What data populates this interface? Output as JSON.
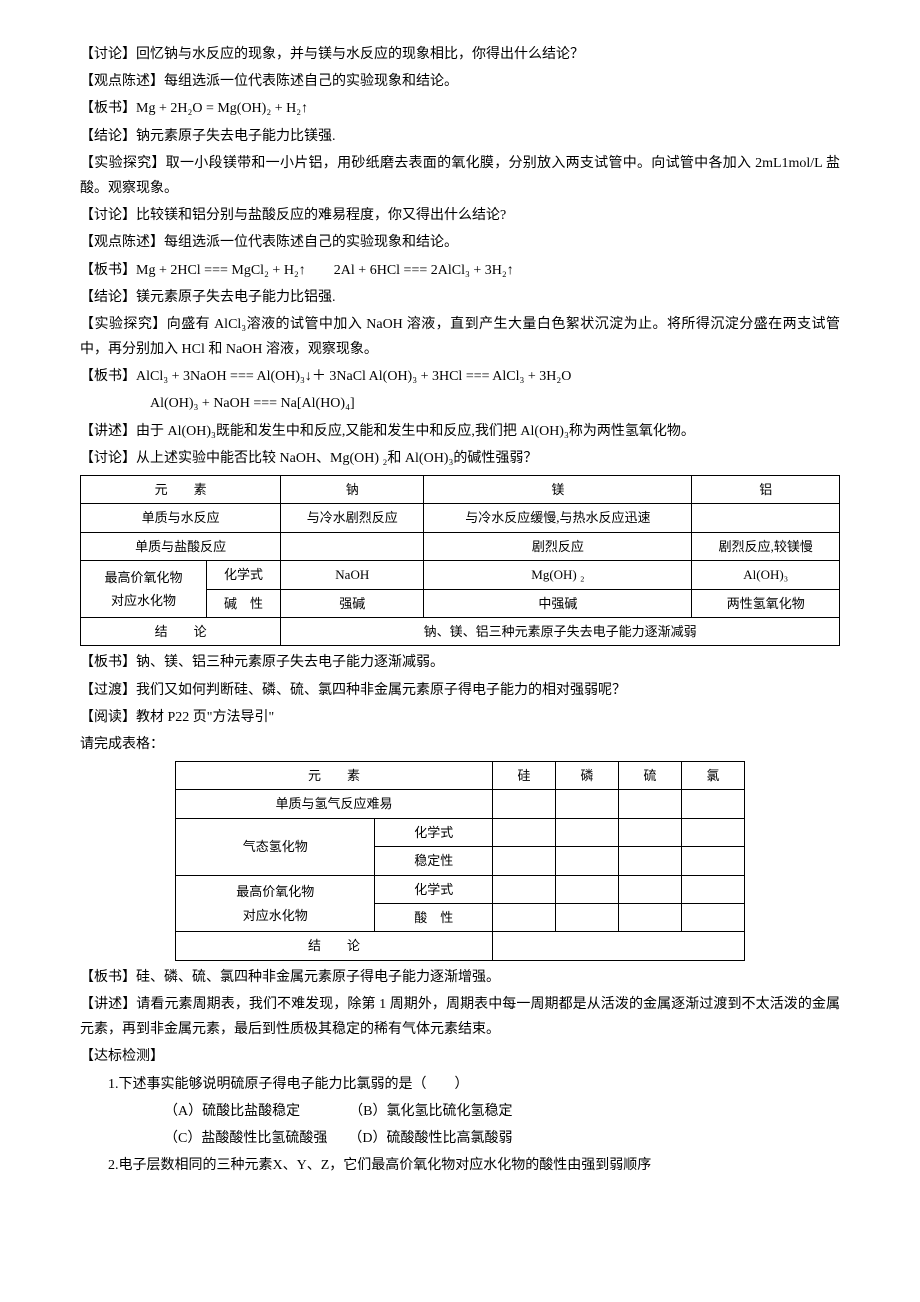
{
  "paragraphs": {
    "p1": "【讨论】回忆钠与水反应的现象，并与镁与水反应的现象相比，你得出什么结论？",
    "p2": "【观点陈述】每组选派一位代表陈述自己的实验现象和结论。",
    "p3": "【板书】Mg + 2H₂O = Mg(OH)₂ + H₂↑",
    "p4": "【结论】钠元素原子失去电子能力比镁强.",
    "p5": "【实验探究】取一小段镁带和一小片铝，用砂纸磨去表面的氧化膜，分别放入两支试管中。向试管中各加入 2mL1mol/L 盐酸。观察现象。",
    "p6": "【讨论】比较镁和铝分别与盐酸反应的难易程度，你又得出什么结论?",
    "p7": "【观点陈述】每组选派一位代表陈述自己的实验现象和结论。",
    "p8": "【板书】Mg + 2HCl === MgCl₂ + H₂↑　　2Al + 6HCl === 2AlCl₃ + 3H₂↑",
    "p9": "【结论】镁元素原子失去电子能力比铝强.",
    "p10": "【实验探究】向盛有 AlCl₃溶液的试管中加入 NaOH 溶液，直到产生大量白色絮状沉淀为止。将所得沉淀分盛在两支试管中，再分别加入 HCl 和 NaOH 溶液，观察现象。",
    "p11": "【板书】AlCl₃ + 3NaOH  === Al(OH)₃↓＋ 3NaCl  Al(OH)₃ + 3HCl === AlCl₃ + 3H₂O",
    "p11b": "Al(OH)₃ + NaOH === Na[Al(HO)₄]",
    "p12": "【讲述】由于 Al(OH)₃既能和发生中和反应,又能和发生中和反应,我们把 Al(OH)₃称为两性氢氧化物。",
    "p13": "【讨论】从上述实验中能否比较 NaOH、Mg(OH) ₂和 Al(OH)₃的碱性强弱？",
    "p14": "【板书】钠、镁、铝三种元素原子失去电子能力逐渐减弱。",
    "p15": "【过渡】我们又如何判断硅、磷、硫、氯四种非金属元素原子得电子能力的相对强弱呢？",
    "p16": "【阅读】教材 P22 页\"方法导引\"",
    "p17": "请完成表格：",
    "p18": "【板书】硅、磷、硫、氯四种非金属元素原子得电子能力逐渐增强。",
    "p19": "【讲述】请看元素周期表，我们不难发现，除第 1 周期外，周期表中每一周期都是从活泼的金属逐渐过渡到不太活泼的金属元素，再到非金属元素，最后到性质极其稳定的稀有气体元素结束。",
    "p20": "【达标检测】",
    "q1": "1.下述事实能够说明硫原子得电子能力比氯弱的是（　　）",
    "q1a": "（A）硫酸比盐酸稳定",
    "q1b": "（B）氯化氢比硫化氢稳定",
    "q1c": "（C）盐酸酸性比氢硫酸强",
    "q1d": "（D）硫酸酸性比高氯酸弱",
    "q2": "2.电子层数相同的三种元素X、Y、Z，它们最高价氧化物对应水化物的酸性由强到弱顺序"
  },
  "table1": {
    "headers": [
      "元　　素",
      "钠",
      "镁",
      "铝"
    ],
    "row1": {
      "label": "单质与水反应",
      "na": "与冷水剧烈反应",
      "mg": "与冷水反应缓慢,与热水反应迅速",
      "al": ""
    },
    "row2": {
      "label": "单质与盐酸反应",
      "na": "",
      "mg": "剧烈反应",
      "al": "剧烈反应,较镁慢"
    },
    "row3": {
      "label1": "最高价氧化物",
      "label2": "对应水化物",
      "sub1": "化学式",
      "sub2": "碱　性",
      "na1": "NaOH",
      "mg1": "Mg(OH) ₂",
      "al1": "Al(OH)₃",
      "na2": "强碱",
      "mg2": "中强碱",
      "al2": "两性氢氧化物"
    },
    "row4": {
      "label": "结　　论",
      "content": "钠、镁、铝三种元素原子失去电子能力逐渐减弱"
    }
  },
  "table2": {
    "headers": [
      "元　　素",
      "硅",
      "磷",
      "硫",
      "氯"
    ],
    "row1": "单质与氢气反应难易",
    "row2": {
      "label": "气态氢化物",
      "sub1": "化学式",
      "sub2": "稳定性"
    },
    "row3": {
      "label1": "最高价氧化物",
      "label2": "对应水化物",
      "sub1": "化学式",
      "sub2": "酸　性"
    },
    "row4": "结　　论"
  }
}
